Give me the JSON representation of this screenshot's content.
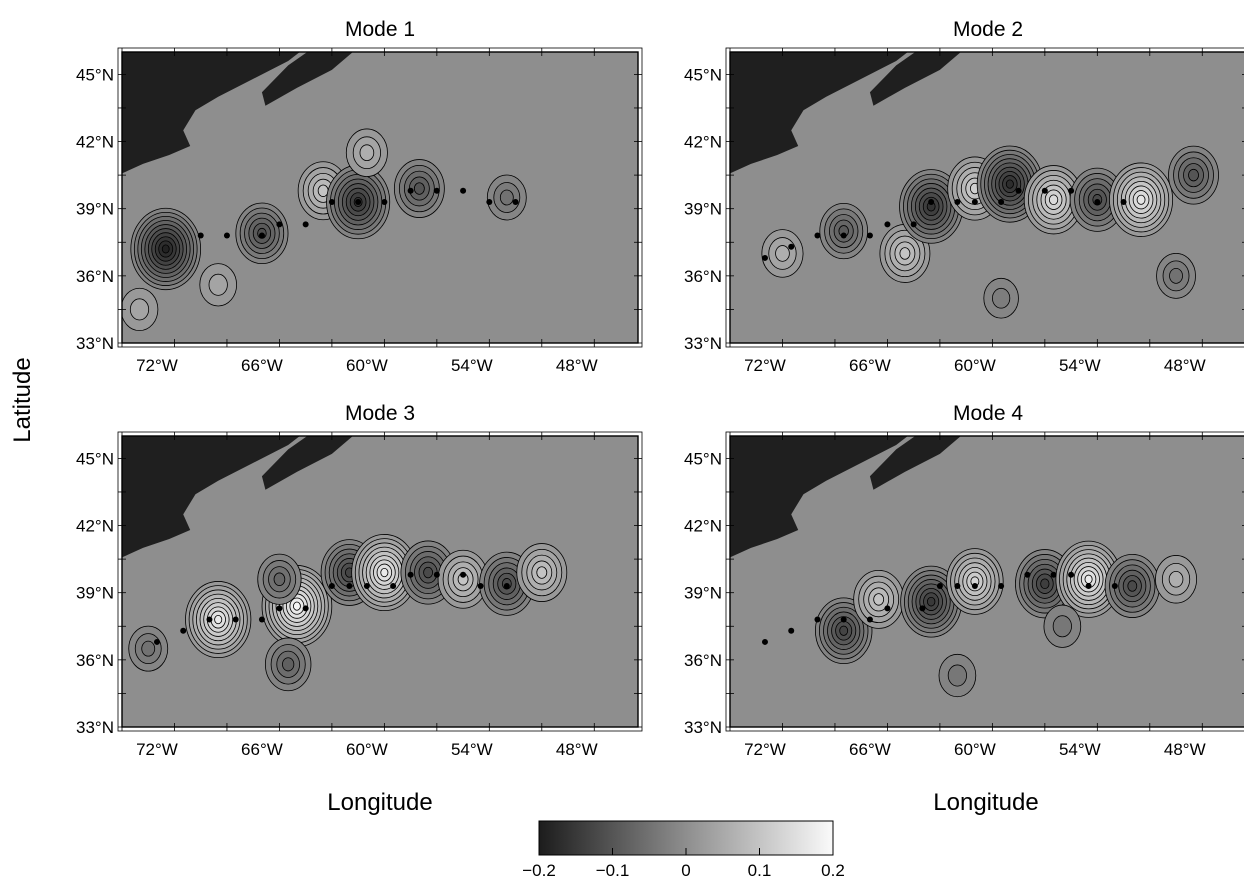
{
  "chart_data": [
    {
      "type": "heatmap",
      "title": "Mode 1",
      "xlabel": "Longitude",
      "ylabel": "Latitude",
      "x_ticks": [
        "72°W",
        "66°W",
        "60°W",
        "54°W",
        "48°W"
      ],
      "y_ticks": [
        "33°N",
        "36°N",
        "39°N",
        "42°N",
        "45°N"
      ],
      "xlim": [
        -74,
        -44.5
      ],
      "ylim": [
        33,
        46
      ],
      "color_range": [
        -0.2,
        0.2
      ],
      "features": [
        {
          "lon": -71.5,
          "lat": 37.2,
          "value": -0.19
        },
        {
          "lon": -66.0,
          "lat": 37.9,
          "value": -0.11
        },
        {
          "lon": -62.5,
          "lat": 39.8,
          "value": 0.1
        },
        {
          "lon": -60.5,
          "lat": 39.3,
          "value": -0.16
        },
        {
          "lon": -57.0,
          "lat": 39.9,
          "value": -0.1
        },
        {
          "lon": -60.0,
          "lat": 41.5,
          "value": 0.06
        },
        {
          "lon": -52.0,
          "lat": 39.5,
          "value": -0.05
        },
        {
          "lon": -73.0,
          "lat": 34.5,
          "value": 0.04
        },
        {
          "lon": -68.5,
          "lat": 35.6,
          "value": 0.04
        }
      ],
      "stations": [
        {
          "lon": -69.5,
          "lat": 37.8
        },
        {
          "lon": -68.0,
          "lat": 37.8
        },
        {
          "lon": -66.0,
          "lat": 37.8
        },
        {
          "lon": -65.0,
          "lat": 38.3
        },
        {
          "lon": -63.5,
          "lat": 38.3
        },
        {
          "lon": -62.0,
          "lat": 39.3
        },
        {
          "lon": -60.5,
          "lat": 39.3
        },
        {
          "lon": -59.0,
          "lat": 39.3
        },
        {
          "lon": -57.5,
          "lat": 39.8
        },
        {
          "lon": -56.0,
          "lat": 39.8
        },
        {
          "lon": -54.5,
          "lat": 39.8
        },
        {
          "lon": -53.0,
          "lat": 39.3
        },
        {
          "lon": -51.5,
          "lat": 39.3
        }
      ]
    },
    {
      "type": "heatmap",
      "title": "Mode 2",
      "x_ticks": [
        "72°W",
        "66°W",
        "60°W",
        "54°W",
        "48°W"
      ],
      "y_ticks": [
        "33°N",
        "36°N",
        "39°N",
        "42°N",
        "45°N"
      ],
      "xlim": [
        -74,
        -44.5
      ],
      "ylim": [
        33,
        46
      ],
      "color_range": [
        -0.2,
        0.2
      ],
      "features": [
        {
          "lon": -71.0,
          "lat": 37.0,
          "value": 0.06
        },
        {
          "lon": -67.5,
          "lat": 38.0,
          "value": -0.09
        },
        {
          "lon": -64.0,
          "lat": 37.0,
          "value": 0.1
        },
        {
          "lon": -62.5,
          "lat": 39.1,
          "value": -0.16
        },
        {
          "lon": -60.0,
          "lat": 39.9,
          "value": 0.12
        },
        {
          "lon": -58.0,
          "lat": 40.1,
          "value": -0.17
        },
        {
          "lon": -55.5,
          "lat": 39.4,
          "value": 0.14
        },
        {
          "lon": -53.0,
          "lat": 39.4,
          "value": -0.12
        },
        {
          "lon": -50.5,
          "lat": 39.4,
          "value": 0.16
        },
        {
          "lon": -47.5,
          "lat": 40.5,
          "value": -0.1
        },
        {
          "lon": -48.5,
          "lat": 36.0,
          "value": -0.05
        },
        {
          "lon": -58.5,
          "lat": 35.0,
          "value": -0.03
        }
      ],
      "stations": [
        {
          "lon": -72.0,
          "lat": 36.8
        },
        {
          "lon": -70.5,
          "lat": 37.3
        },
        {
          "lon": -69.0,
          "lat": 37.8
        },
        {
          "lon": -67.5,
          "lat": 37.8
        },
        {
          "lon": -66.0,
          "lat": 37.8
        },
        {
          "lon": -65.0,
          "lat": 38.3
        },
        {
          "lon": -63.5,
          "lat": 38.3
        },
        {
          "lon": -62.5,
          "lat": 39.3
        },
        {
          "lon": -61.0,
          "lat": 39.3
        },
        {
          "lon": -60.0,
          "lat": 39.3
        },
        {
          "lon": -58.5,
          "lat": 39.3
        },
        {
          "lon": -57.5,
          "lat": 39.8
        },
        {
          "lon": -56.0,
          "lat": 39.8
        },
        {
          "lon": -54.5,
          "lat": 39.8
        },
        {
          "lon": -53.0,
          "lat": 39.3
        },
        {
          "lon": -51.5,
          "lat": 39.3
        }
      ]
    },
    {
      "type": "heatmap",
      "title": "Mode 3",
      "x_ticks": [
        "72°W",
        "66°W",
        "60°W",
        "54°W",
        "48°W"
      ],
      "y_ticks": [
        "33°N",
        "36°N",
        "39°N",
        "42°N",
        "45°N"
      ],
      "xlim": [
        -74,
        -44.5
      ],
      "ylim": [
        33,
        46
      ],
      "color_range": [
        -0.2,
        0.2
      ],
      "features": [
        {
          "lon": -68.5,
          "lat": 37.8,
          "value": 0.17
        },
        {
          "lon": -64.0,
          "lat": 38.4,
          "value": 0.19
        },
        {
          "lon": -64.5,
          "lat": 35.8,
          "value": -0.08
        },
        {
          "lon": -65.0,
          "lat": 39.6,
          "value": -0.07
        },
        {
          "lon": -61.0,
          "lat": 39.9,
          "value": -0.13
        },
        {
          "lon": -59.0,
          "lat": 39.9,
          "value": 0.17
        },
        {
          "lon": -56.5,
          "lat": 39.9,
          "value": -0.12
        },
        {
          "lon": -54.5,
          "lat": 39.6,
          "value": 0.1
        },
        {
          "lon": -52.0,
          "lat": 39.4,
          "value": -0.12
        },
        {
          "lon": -50.0,
          "lat": 39.9,
          "value": 0.1
        },
        {
          "lon": -72.5,
          "lat": 36.5,
          "value": -0.05
        }
      ],
      "stations": [
        {
          "lon": -72.0,
          "lat": 36.8
        },
        {
          "lon": -70.5,
          "lat": 37.3
        },
        {
          "lon": -69.0,
          "lat": 37.8
        },
        {
          "lon": -67.5,
          "lat": 37.8
        },
        {
          "lon": -66.0,
          "lat": 37.8
        },
        {
          "lon": -65.0,
          "lat": 38.3
        },
        {
          "lon": -63.5,
          "lat": 38.3
        },
        {
          "lon": -62.0,
          "lat": 39.3
        },
        {
          "lon": -61.0,
          "lat": 39.3
        },
        {
          "lon": -60.0,
          "lat": 39.3
        },
        {
          "lon": -58.5,
          "lat": 39.3
        },
        {
          "lon": -57.5,
          "lat": 39.8
        },
        {
          "lon": -56.0,
          "lat": 39.8
        },
        {
          "lon": -54.5,
          "lat": 39.8
        },
        {
          "lon": -53.5,
          "lat": 39.3
        },
        {
          "lon": -52.0,
          "lat": 39.3
        }
      ]
    },
    {
      "type": "heatmap",
      "title": "Mode 4",
      "x_ticks": [
        "72°W",
        "66°W",
        "60°W",
        "54°W",
        "48°W"
      ],
      "y_ticks": [
        "33°N",
        "36°N",
        "39°N",
        "42°N",
        "45°N"
      ],
      "xlim": [
        -74,
        -44.5
      ],
      "ylim": [
        33,
        46
      ],
      "color_range": [
        -0.2,
        0.2
      ],
      "features": [
        {
          "lon": -67.5,
          "lat": 37.3,
          "value": -0.13
        },
        {
          "lon": -65.5,
          "lat": 38.7,
          "value": 0.1
        },
        {
          "lon": -62.5,
          "lat": 38.6,
          "value": -0.15
        },
        {
          "lon": -60.0,
          "lat": 39.5,
          "value": 0.13
        },
        {
          "lon": -56.0,
          "lat": 39.4,
          "value": -0.14
        },
        {
          "lon": -53.5,
          "lat": 39.6,
          "value": 0.17
        },
        {
          "lon": -51.0,
          "lat": 39.3,
          "value": -0.12
        },
        {
          "lon": -48.5,
          "lat": 39.6,
          "value": 0.06
        },
        {
          "lon": -61.0,
          "lat": 35.3,
          "value": -0.04
        },
        {
          "lon": -55.0,
          "lat": 37.5,
          "value": -0.04
        }
      ],
      "stations": [
        {
          "lon": -72.0,
          "lat": 36.8
        },
        {
          "lon": -70.5,
          "lat": 37.3
        },
        {
          "lon": -69.0,
          "lat": 37.8
        },
        {
          "lon": -67.5,
          "lat": 37.8
        },
        {
          "lon": -66.0,
          "lat": 37.8
        },
        {
          "lon": -65.0,
          "lat": 38.3
        },
        {
          "lon": -63.0,
          "lat": 38.3
        },
        {
          "lon": -62.0,
          "lat": 39.3
        },
        {
          "lon": -61.0,
          "lat": 39.3
        },
        {
          "lon": -60.0,
          "lat": 39.3
        },
        {
          "lon": -58.5,
          "lat": 39.3
        },
        {
          "lon": -57.0,
          "lat": 39.8
        },
        {
          "lon": -55.5,
          "lat": 39.8
        },
        {
          "lon": -54.5,
          "lat": 39.8
        },
        {
          "lon": -53.5,
          "lat": 39.3
        },
        {
          "lon": -52.0,
          "lat": 39.3
        }
      ]
    }
  ],
  "labels": {
    "x_axis_title": "Longitude",
    "y_axis_title": "Latitude"
  },
  "colorbar": {
    "min": -0.2,
    "max": 0.2,
    "ticks": [
      "−0.2",
      "−0.1",
      "0",
      "0.1",
      "0.2"
    ]
  },
  "colors": {
    "background_value": "#8e8e8e",
    "land": "#1f1f1f",
    "low": "#1c1c1c",
    "high": "#fafafa"
  }
}
